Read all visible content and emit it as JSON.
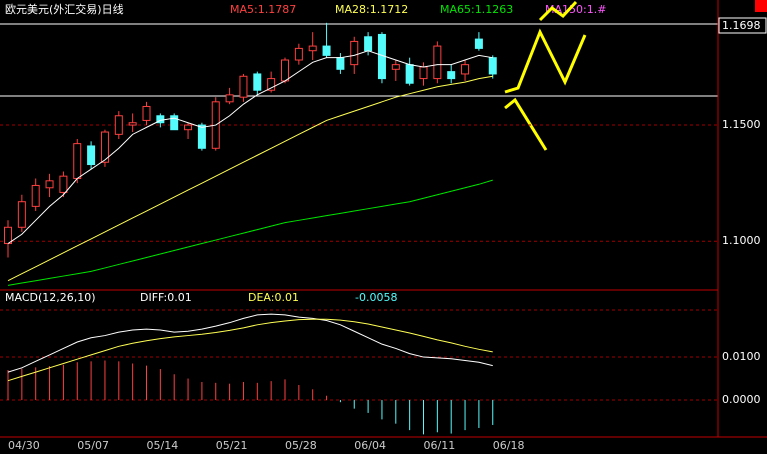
{
  "chart_data": [
    {
      "type": "candlestick",
      "title": "欧元美元(外汇交易)日线",
      "categories": [
        "04/30",
        null,
        null,
        null,
        null,
        "05/07",
        null,
        null,
        null,
        null,
        "05/14",
        null,
        null,
        null,
        null,
        "05/21",
        null,
        null,
        null,
        null,
        "05/28",
        null,
        null,
        null,
        null,
        "06/04",
        null,
        null,
        null,
        null,
        "06/11",
        null,
        null,
        null,
        null,
        "06/18"
      ],
      "open": [
        1.099,
        1.106,
        1.115,
        1.123,
        1.121,
        1.127,
        1.141,
        1.134,
        1.146,
        1.15,
        1.152,
        1.154,
        1.154,
        1.148,
        1.15,
        1.14,
        1.16,
        1.162,
        1.172,
        1.165,
        1.169,
        1.178,
        1.182,
        1.184,
        1.179,
        1.176,
        1.188,
        1.189,
        1.174,
        1.176,
        1.17,
        1.17,
        1.173,
        1.172,
        1.187,
        1.179
      ],
      "high": [
        1.109,
        1.12,
        1.127,
        1.129,
        1.13,
        1.144,
        1.143,
        1.148,
        1.156,
        1.155,
        1.16,
        1.155,
        1.155,
        1.151,
        1.151,
        1.162,
        1.166,
        1.172,
        1.173,
        1.173,
        1.179,
        1.185,
        1.19,
        1.194,
        1.181,
        1.188,
        1.19,
        1.19,
        1.178,
        1.179,
        1.177,
        1.186,
        1.176,
        1.178,
        1.19,
        1.18
      ],
      "low": [
        1.093,
        1.104,
        1.113,
        1.119,
        1.119,
        1.125,
        1.131,
        1.132,
        1.144,
        1.147,
        1.15,
        1.149,
        1.148,
        1.144,
        1.139,
        1.139,
        1.159,
        1.16,
        1.163,
        1.164,
        1.168,
        1.176,
        1.178,
        1.179,
        1.172,
        1.172,
        1.18,
        1.168,
        1.169,
        1.167,
        1.167,
        1.168,
        1.168,
        1.169,
        1.182,
        1.17
      ],
      "close": [
        1.106,
        1.117,
        1.124,
        1.126,
        1.128,
        1.142,
        1.133,
        1.147,
        1.154,
        1.151,
        1.158,
        1.151,
        1.148,
        1.15,
        1.14,
        1.16,
        1.163,
        1.171,
        1.165,
        1.17,
        1.178,
        1.183,
        1.184,
        1.18,
        1.174,
        1.186,
        1.182,
        1.17,
        1.176,
        1.168,
        1.175,
        1.184,
        1.17,
        1.176,
        1.183,
        1.172
      ],
      "up_color": "#ff4040",
      "down_color": "#54fcfc",
      "series": [
        {
          "name": "MA5:1.1787",
          "color": "#ffffff",
          "values": [
            1.099,
            1.103,
            1.109,
            1.115,
            1.12,
            1.127,
            1.131,
            1.135,
            1.14,
            1.146,
            1.149,
            1.152,
            1.153,
            1.151,
            1.149,
            1.15,
            1.154,
            1.159,
            1.163,
            1.166,
            1.169,
            1.173,
            1.177,
            1.179,
            1.179,
            1.18,
            1.182,
            1.18,
            1.178,
            1.176,
            1.175,
            1.176,
            1.176,
            1.178,
            1.18,
            1.179
          ]
        },
        {
          "name": "MA28:1.1712",
          "color": "#ffff54",
          "values": [
            1.083,
            1.086,
            1.089,
            1.092,
            1.095,
            1.098,
            1.101,
            1.104,
            1.107,
            1.11,
            1.113,
            1.116,
            1.119,
            1.122,
            1.125,
            1.128,
            1.131,
            1.134,
            1.137,
            1.14,
            1.143,
            1.146,
            1.149,
            1.152,
            1.154,
            1.156,
            1.158,
            1.16,
            1.162,
            1.1635,
            1.165,
            1.1665,
            1.1675,
            1.1685,
            1.17,
            1.171
          ]
        },
        {
          "name": "MA65:1.1263",
          "color": "#00e600",
          "values": [
            1.081,
            1.082,
            1.083,
            1.084,
            1.085,
            1.086,
            1.087,
            1.0885,
            1.09,
            1.0915,
            1.093,
            1.0945,
            1.096,
            1.0975,
            1.099,
            1.1005,
            1.102,
            1.1035,
            1.105,
            1.1065,
            1.108,
            1.109,
            1.11,
            1.111,
            1.112,
            1.113,
            1.114,
            1.115,
            1.116,
            1.117,
            1.1185,
            1.12,
            1.1215,
            1.123,
            1.1245,
            1.1263
          ]
        }
      ],
      "extra_legend": {
        "name": "MA150:1.#",
        "color": "#ff54ff"
      },
      "last_price": 1.1698,
      "ylim": [
        1.079,
        1.1935
      ],
      "yticks": [
        {
          "value": 1.15,
          "label": "1.1500"
        },
        {
          "value": 1.1,
          "label": "1.1000"
        }
      ],
      "grid": true
    },
    {
      "type": "macd",
      "title": "MACD(12,26,10)",
      "histogram": {
        "pos_color": "#ff4040",
        "neg_color": "#54fcfc",
        "values": [
          0.007,
          0.0073,
          0.0076,
          0.0079,
          0.0082,
          0.0088,
          0.009,
          0.0092,
          0.009,
          0.0085,
          0.008,
          0.0072,
          0.006,
          0.005,
          0.0042,
          0.004,
          0.0038,
          0.0042,
          0.004,
          0.0044,
          0.0048,
          0.0035,
          0.0025,
          0.001,
          -0.0005,
          -0.002,
          -0.003,
          -0.0045,
          -0.0055,
          -0.007,
          -0.008,
          -0.0075,
          -0.0078,
          -0.007,
          -0.0065,
          -0.0058
        ]
      },
      "series": [
        {
          "name": "DIFF:0.01",
          "color": "#ffffff",
          "values": [
            0.0065,
            0.0075,
            0.009,
            0.0105,
            0.012,
            0.0135,
            0.0145,
            0.015,
            0.0158,
            0.0163,
            0.0165,
            0.0163,
            0.0158,
            0.016,
            0.0165,
            0.0172,
            0.018,
            0.019,
            0.0198,
            0.02,
            0.0198,
            0.0193,
            0.019,
            0.0185,
            0.0175,
            0.016,
            0.0145,
            0.013,
            0.012,
            0.0108,
            0.01,
            0.0098,
            0.0096,
            0.0092,
            0.0088,
            0.008
          ]
        },
        {
          "name": "DEA:0.01",
          "color": "#ffff54",
          "values": [
            0.0045,
            0.0055,
            0.0065,
            0.0075,
            0.0085,
            0.0095,
            0.0105,
            0.0115,
            0.0125,
            0.0132,
            0.0138,
            0.0143,
            0.0147,
            0.015,
            0.0153,
            0.0157,
            0.0162,
            0.0168,
            0.0175,
            0.018,
            0.0184,
            0.0187,
            0.0188,
            0.0188,
            0.0186,
            0.0182,
            0.0177,
            0.017,
            0.0163,
            0.0156,
            0.0148,
            0.014,
            0.0133,
            0.0125,
            0.0118,
            0.0112
          ]
        }
      ],
      "ylim": [
        -0.0086,
        0.0256
      ],
      "yticks": [
        {
          "value": 0.01,
          "label": "0.0100"
        },
        {
          "value": 0,
          "label": "0.0000"
        }
      ],
      "grid": true
    }
  ]
}
